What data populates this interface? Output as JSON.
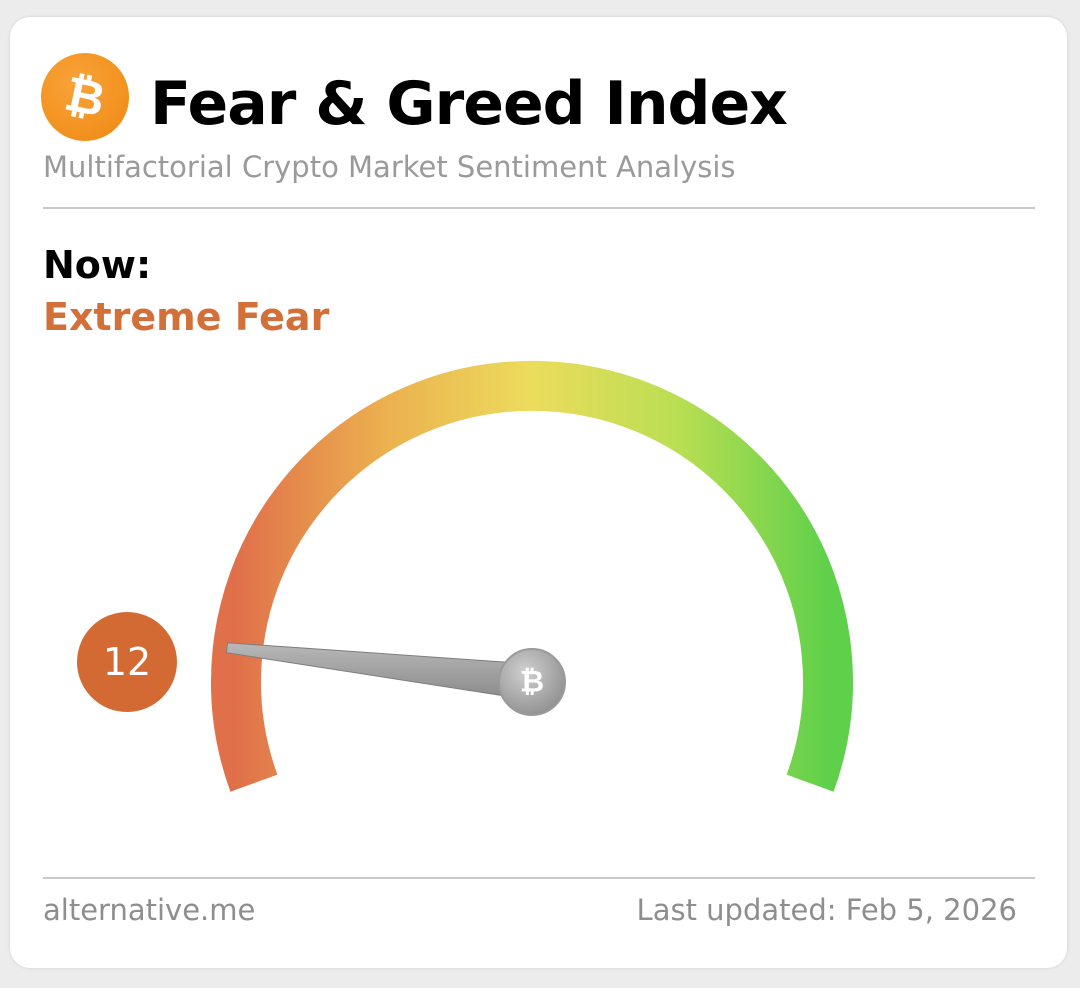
{
  "header": {
    "logo_icon": "bitcoin-icon",
    "logo_glyph": "₿",
    "title": "Fear & Greed Index",
    "subtitle": "Multifactorial Crypto Market Sentiment Analysis"
  },
  "status": {
    "now_label": "Now:",
    "classification": "Extreme Fear",
    "value": "12",
    "value_numeric": 12,
    "scale_min": 0,
    "scale_max": 100
  },
  "gauge": {
    "needle_hub_icon": "bitcoin-icon",
    "needle_hub_glyph": "₿",
    "gradient": [
      "#e0704a",
      "#ebb04f",
      "#ecdc5c",
      "#b9de52",
      "#5fd04a"
    ]
  },
  "footer": {
    "source": "alternative.me",
    "last_updated": "Last updated: Feb 5, 2026"
  },
  "colors": {
    "accent_fear": "#d3703a",
    "badge": "#d36a33",
    "logo": "#f39321"
  }
}
